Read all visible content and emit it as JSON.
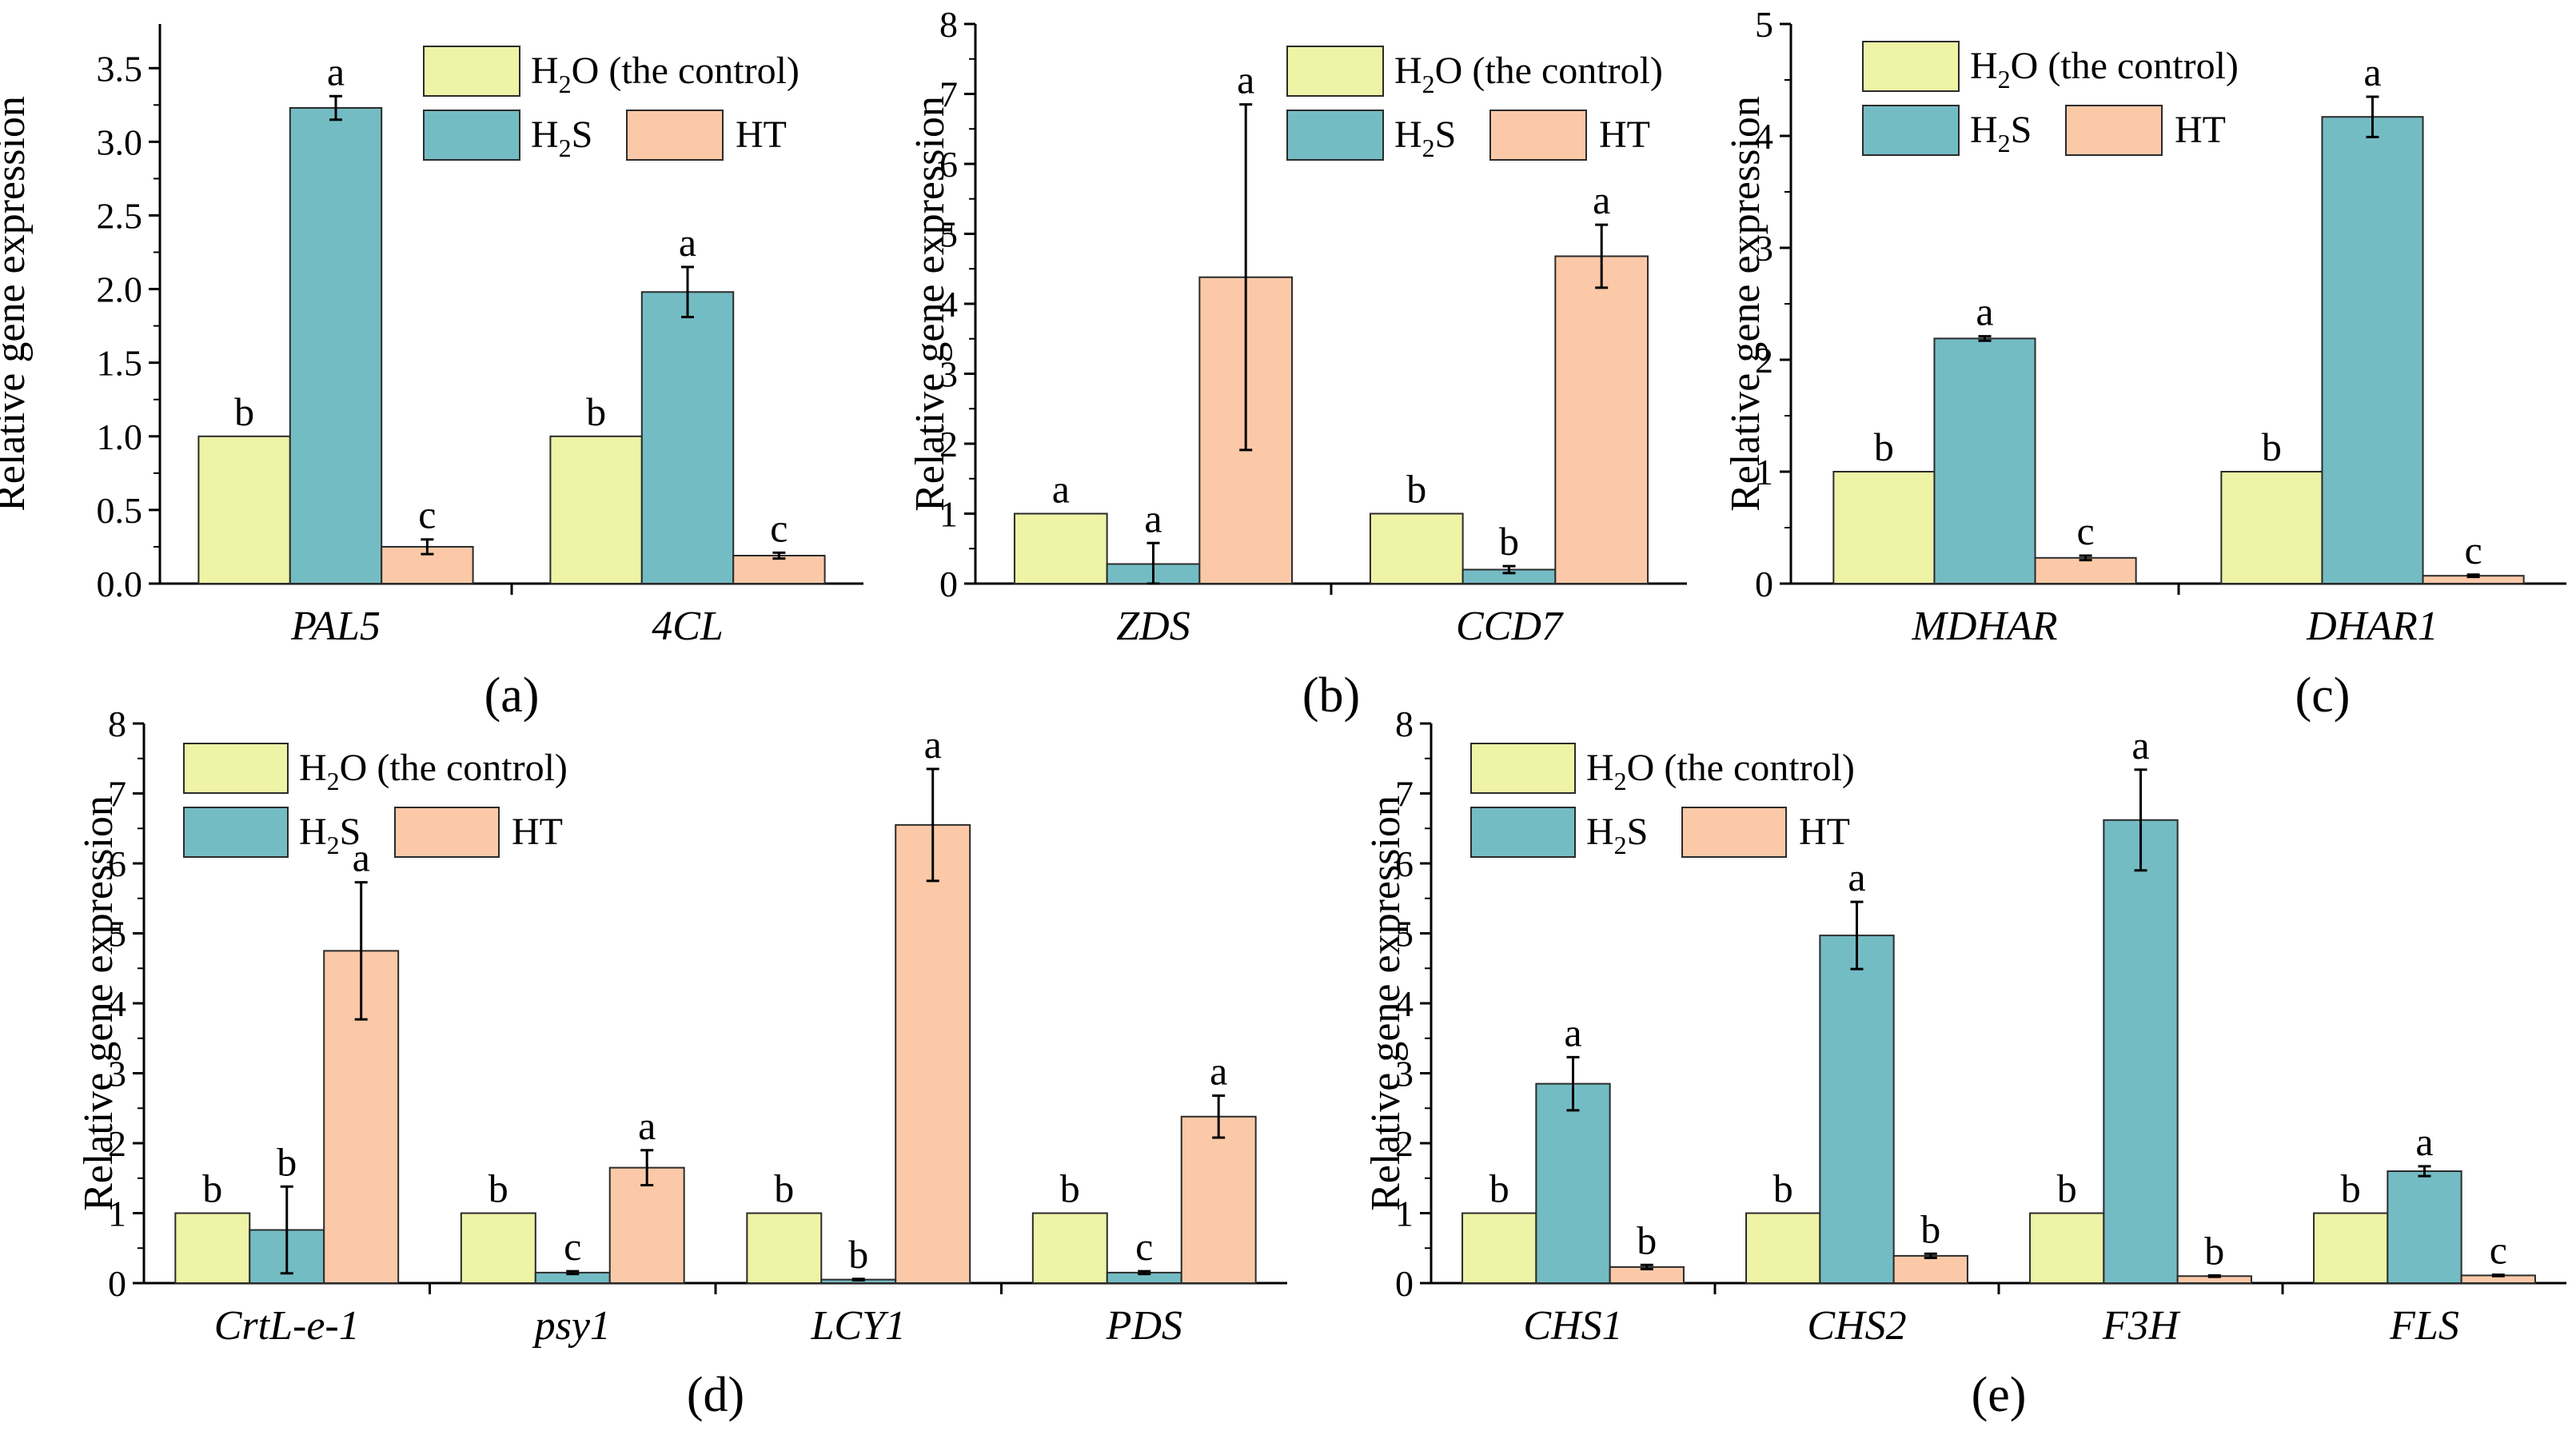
{
  "colors": {
    "h2o": "#eef3a6",
    "h2s": "#74bcc4",
    "ht": "#fbc9a8",
    "axis": "#000000",
    "bar_edge": "#2b2b2b"
  },
  "chart_data": [
    {
      "type": "bar",
      "panel": "(a)",
      "ylabel": "Relative gene expression",
      "ylim": [
        0,
        3.8
      ],
      "yticks": [
        "0.0",
        "0.5",
        "1.0",
        "1.5",
        "2.0",
        "2.5",
        "3.0",
        "3.5"
      ],
      "ytick_values": [
        0,
        0.5,
        1,
        1.5,
        2,
        2.5,
        3,
        3.5
      ],
      "categories": [
        "PAL5",
        "4CL"
      ],
      "legend": {
        "h2o": "H",
        "h2o_sub": "2",
        "h2o_rest": "O (the control)",
        "h2s": "H",
        "h2s_sub": "2",
        "h2s_rest": "S",
        "ht": "HT"
      },
      "series": [
        {
          "name": "H2O (the control)",
          "key": "h2o",
          "values": [
            1.0,
            1.0
          ],
          "errors": [
            0,
            0
          ],
          "labels": [
            "b",
            "b"
          ]
        },
        {
          "name": "H2S",
          "key": "h2s",
          "values": [
            3.23,
            1.98
          ],
          "errors": [
            0.08,
            0.17
          ],
          "labels": [
            "a",
            "a"
          ]
        },
        {
          "name": "HT",
          "key": "ht",
          "values": [
            0.25,
            0.19
          ],
          "errors": [
            0.05,
            0.02
          ],
          "labels": [
            "c",
            "c"
          ]
        }
      ]
    },
    {
      "type": "bar",
      "panel": "(b)",
      "ylabel": "Relative gene expression",
      "ylim": [
        0,
        8
      ],
      "yticks": [
        "0",
        "1",
        "2",
        "3",
        "4",
        "5",
        "6",
        "7",
        "8"
      ],
      "ytick_values": [
        0,
        1,
        2,
        3,
        4,
        5,
        6,
        7,
        8
      ],
      "categories": [
        "ZDS",
        "CCD7"
      ],
      "legend": {
        "h2o": "H",
        "h2o_sub": "2",
        "h2o_rest": "O (the control)",
        "h2s": "H",
        "h2s_sub": "2",
        "h2s_rest": "S",
        "ht": "HT"
      },
      "series": [
        {
          "name": "H2O (the control)",
          "key": "h2o",
          "values": [
            1.0,
            1.0
          ],
          "errors": [
            0,
            0
          ],
          "labels": [
            "a",
            "b"
          ]
        },
        {
          "name": "H2S",
          "key": "h2s",
          "values": [
            0.28,
            0.2
          ],
          "errors": [
            0.3,
            0.05
          ],
          "labels": [
            "a",
            "b"
          ]
        },
        {
          "name": "HT",
          "key": "ht",
          "values": [
            4.38,
            4.68
          ],
          "errors": [
            2.47,
            0.45
          ],
          "labels": [
            "a",
            "a"
          ]
        }
      ]
    },
    {
      "type": "bar",
      "panel": "(c)",
      "ylabel": "Relative gene expression",
      "ylim": [
        0,
        5
      ],
      "yticks": [
        "0",
        "1",
        "2",
        "3",
        "4",
        "5"
      ],
      "ytick_values": [
        0,
        1,
        2,
        3,
        4,
        5
      ],
      "categories": [
        "MDHAR",
        "DHAR1"
      ],
      "legend": {
        "h2o": "H",
        "h2o_sub": "2",
        "h2o_rest": "O (the control)",
        "h2s": "H",
        "h2s_sub": "2",
        "h2s_rest": "S",
        "ht": "HT"
      },
      "series": [
        {
          "name": "H2O (the control)",
          "key": "h2o",
          "values": [
            1.0,
            1.0
          ],
          "errors": [
            0,
            0
          ],
          "labels": [
            "b",
            "b"
          ]
        },
        {
          "name": "H2S",
          "key": "h2s",
          "values": [
            2.19,
            4.17
          ],
          "errors": [
            0.02,
            0.18
          ],
          "labels": [
            "a",
            "a"
          ]
        },
        {
          "name": "HT",
          "key": "ht",
          "values": [
            0.23,
            0.07
          ],
          "errors": [
            0.02,
            0.01
          ],
          "labels": [
            "c",
            "c"
          ]
        }
      ]
    },
    {
      "type": "bar",
      "panel": "(d)",
      "ylabel": "Relative gene expression",
      "ylim": [
        0,
        8
      ],
      "yticks": [
        "0",
        "1",
        "2",
        "3",
        "4",
        "5",
        "6",
        "7",
        "8"
      ],
      "ytick_values": [
        0,
        1,
        2,
        3,
        4,
        5,
        6,
        7,
        8
      ],
      "categories": [
        "CrtL-e-1",
        "psy1",
        "LCY1",
        "PDS"
      ],
      "legend": {
        "h2o": "H",
        "h2o_sub": "2",
        "h2o_rest": "O (the control)",
        "h2s": "H",
        "h2s_sub": "2",
        "h2s_rest": "S",
        "ht": "HT"
      },
      "series": [
        {
          "name": "H2O (the control)",
          "key": "h2o",
          "values": [
            1.0,
            1.0,
            1.0,
            1.0
          ],
          "errors": [
            0,
            0,
            0,
            0
          ],
          "labels": [
            "b",
            "b",
            "b",
            "b"
          ]
        },
        {
          "name": "H2S",
          "key": "h2s",
          "values": [
            0.76,
            0.15,
            0.05,
            0.15
          ],
          "errors": [
            0.62,
            0.02,
            0.01,
            0.02
          ],
          "labels": [
            "b",
            "c",
            "b",
            "c"
          ]
        },
        {
          "name": "HT",
          "key": "ht",
          "values": [
            4.75,
            1.65,
            6.55,
            2.38
          ],
          "errors": [
            0.98,
            0.25,
            0.8,
            0.3
          ],
          "labels": [
            "a",
            "a",
            "a",
            "a"
          ]
        }
      ]
    },
    {
      "type": "bar",
      "panel": "(e)",
      "ylabel": "Relative gene expression",
      "ylim": [
        0,
        8
      ],
      "yticks": [
        "0",
        "1",
        "2",
        "3",
        "4",
        "5",
        "6",
        "7",
        "8"
      ],
      "ytick_values": [
        0,
        1,
        2,
        3,
        4,
        5,
        6,
        7,
        8
      ],
      "categories": [
        "CHS1",
        "CHS2",
        "F3H",
        "FLS"
      ],
      "legend": {
        "h2o": "H",
        "h2o_sub": "2",
        "h2o_rest": "O (the control)",
        "h2s": "H",
        "h2s_sub": "2",
        "h2s_rest": "S",
        "ht": "HT"
      },
      "series": [
        {
          "name": "H2O (the control)",
          "key": "h2o",
          "values": [
            1.0,
            1.0,
            1.0,
            1.0
          ],
          "errors": [
            0,
            0,
            0,
            0
          ],
          "labels": [
            "b",
            "b",
            "b",
            "b"
          ]
        },
        {
          "name": "H2S",
          "key": "h2s",
          "values": [
            2.85,
            4.97,
            6.62,
            1.6
          ],
          "errors": [
            0.38,
            0.48,
            0.72,
            0.07
          ],
          "labels": [
            "a",
            "a",
            "a",
            "a"
          ]
        },
        {
          "name": "HT",
          "key": "ht",
          "values": [
            0.23,
            0.39,
            0.1,
            0.11
          ],
          "errors": [
            0.03,
            0.03,
            0.01,
            0.01
          ],
          "labels": [
            "b",
            "b",
            "b",
            "c"
          ]
        }
      ]
    }
  ]
}
